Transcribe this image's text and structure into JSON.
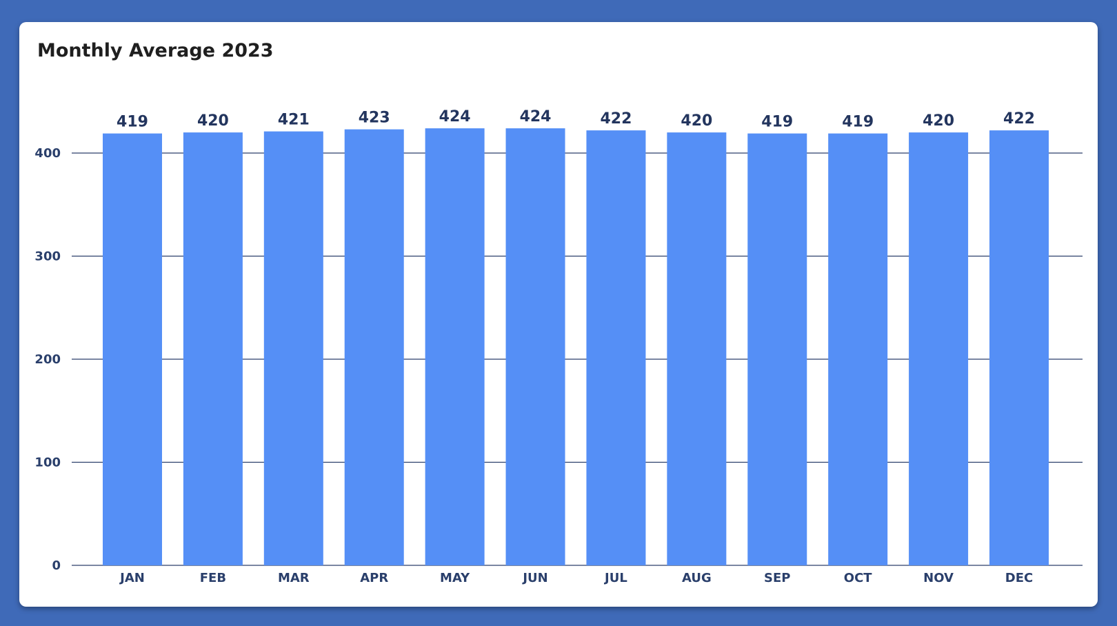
{
  "chart_data": {
    "type": "bar",
    "title": "Monthly Average 2023",
    "categories": [
      "JAN",
      "FEB",
      "MAR",
      "APR",
      "MAY",
      "JUN",
      "JUL",
      "AUG",
      "SEP",
      "OCT",
      "NOV",
      "DEC"
    ],
    "values": [
      419,
      420,
      421,
      423,
      424,
      424,
      422,
      420,
      419,
      419,
      420,
      422
    ],
    "xlabel": "",
    "ylabel": "",
    "ylim": [
      0,
      400
    ],
    "yticks": [
      0,
      100,
      200,
      300,
      400
    ],
    "grid": true,
    "data_labels": true,
    "legend": "none"
  },
  "colors": {
    "background": "#3f6ab8",
    "card": "#ffffff",
    "bar": "#558ff6",
    "gridline": "#2a3f6b",
    "text": "#23355e"
  }
}
